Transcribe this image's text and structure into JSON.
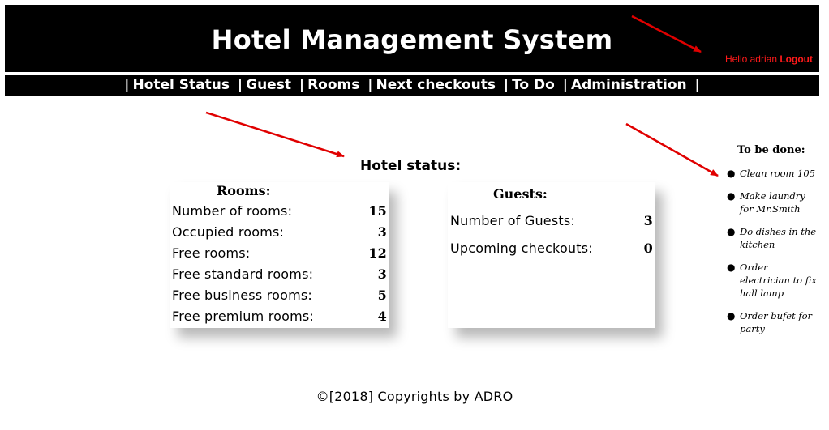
{
  "header": {
    "title": "Hotel Management System",
    "greeting": "Hello adrian",
    "logout_label": "Logout"
  },
  "nav": {
    "items": [
      {
        "label": "Hotel Status"
      },
      {
        "label": "Guest"
      },
      {
        "label": "Rooms"
      },
      {
        "label": "Next checkouts"
      },
      {
        "label": "To Do"
      },
      {
        "label": "Administration"
      }
    ],
    "separator": "|"
  },
  "main": {
    "status_title": "Hotel status:",
    "rooms": {
      "title": "Rooms:",
      "rows": [
        {
          "label": "Number of rooms:",
          "value": "15"
        },
        {
          "label": "Occupied rooms:",
          "value": "3"
        },
        {
          "label": "Free rooms:",
          "value": "12"
        },
        {
          "label": "Free standard rooms:",
          "value": "3"
        },
        {
          "label": "Free business rooms:",
          "value": "5"
        },
        {
          "label": "Free premium rooms:",
          "value": "4"
        }
      ]
    },
    "guests": {
      "title": "Guests:",
      "rows": [
        {
          "label": "Number of Guests:",
          "value": "3"
        },
        {
          "label": "Upcoming checkouts:",
          "value": "0"
        }
      ]
    }
  },
  "todo": {
    "title": "To be done:",
    "items": [
      {
        "text": "Clean room 105"
      },
      {
        "text": "Make laundry for Mr.Smith"
      },
      {
        "text": "Do dishes in the kitchen"
      },
      {
        "text": "Order electrician to fix hall lamp"
      },
      {
        "text": "Order bufet for party"
      }
    ]
  },
  "footer": {
    "text": "©[2018] Copyrights by ADRO"
  },
  "colors": {
    "header_bg": "#000000",
    "header_text": "#ffffff",
    "user_text": "#ff1a1a",
    "annotation_arrow": "#e00000"
  }
}
